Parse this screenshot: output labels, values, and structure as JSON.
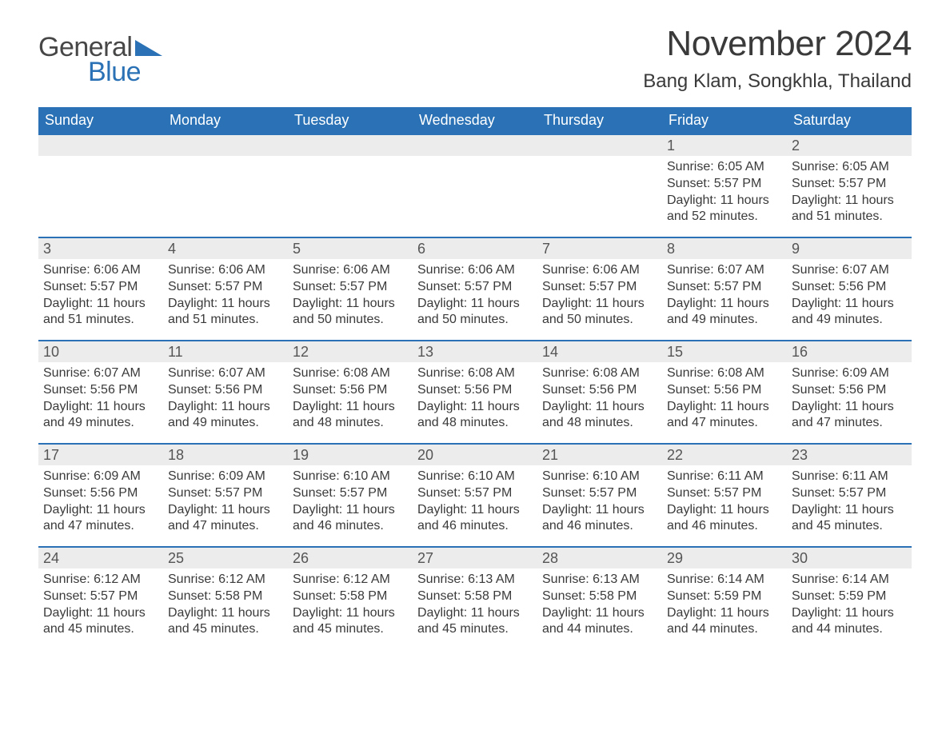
{
  "logo": {
    "word1": "General",
    "word2": "Blue",
    "brand_color": "#2a72b5",
    "text_color": "#474747"
  },
  "title": "November 2024",
  "location": "Bang Klam, Songkhla, Thailand",
  "colors": {
    "header_bg": "#2a72b5",
    "header_text": "#ffffff",
    "daynum_bg": "#ececec",
    "daynum_border": "#2a72b5",
    "body_text": "#3a3a3a",
    "page_bg": "#ffffff"
  },
  "fonts": {
    "title_size": 44,
    "location_size": 24,
    "dow_size": 18,
    "daynum_size": 18,
    "cell_size": 16
  },
  "day_of_week_labels": [
    "Sunday",
    "Monday",
    "Tuesday",
    "Wednesday",
    "Thursday",
    "Friday",
    "Saturday"
  ],
  "text_labels": {
    "sunrise_prefix": "Sunrise: ",
    "sunset_prefix": "Sunset: ",
    "daylight_prefix": "Daylight: "
  },
  "weeks": [
    [
      null,
      null,
      null,
      null,
      null,
      {
        "day": "1",
        "sunrise": "6:05 AM",
        "sunset": "5:57 PM",
        "daylight": "11 hours and 52 minutes."
      },
      {
        "day": "2",
        "sunrise": "6:05 AM",
        "sunset": "5:57 PM",
        "daylight": "11 hours and 51 minutes."
      }
    ],
    [
      {
        "day": "3",
        "sunrise": "6:06 AM",
        "sunset": "5:57 PM",
        "daylight": "11 hours and 51 minutes."
      },
      {
        "day": "4",
        "sunrise": "6:06 AM",
        "sunset": "5:57 PM",
        "daylight": "11 hours and 51 minutes."
      },
      {
        "day": "5",
        "sunrise": "6:06 AM",
        "sunset": "5:57 PM",
        "daylight": "11 hours and 50 minutes."
      },
      {
        "day": "6",
        "sunrise": "6:06 AM",
        "sunset": "5:57 PM",
        "daylight": "11 hours and 50 minutes."
      },
      {
        "day": "7",
        "sunrise": "6:06 AM",
        "sunset": "5:57 PM",
        "daylight": "11 hours and 50 minutes."
      },
      {
        "day": "8",
        "sunrise": "6:07 AM",
        "sunset": "5:57 PM",
        "daylight": "11 hours and 49 minutes."
      },
      {
        "day": "9",
        "sunrise": "6:07 AM",
        "sunset": "5:56 PM",
        "daylight": "11 hours and 49 minutes."
      }
    ],
    [
      {
        "day": "10",
        "sunrise": "6:07 AM",
        "sunset": "5:56 PM",
        "daylight": "11 hours and 49 minutes."
      },
      {
        "day": "11",
        "sunrise": "6:07 AM",
        "sunset": "5:56 PM",
        "daylight": "11 hours and 49 minutes."
      },
      {
        "day": "12",
        "sunrise": "6:08 AM",
        "sunset": "5:56 PM",
        "daylight": "11 hours and 48 minutes."
      },
      {
        "day": "13",
        "sunrise": "6:08 AM",
        "sunset": "5:56 PM",
        "daylight": "11 hours and 48 minutes."
      },
      {
        "day": "14",
        "sunrise": "6:08 AM",
        "sunset": "5:56 PM",
        "daylight": "11 hours and 48 minutes."
      },
      {
        "day": "15",
        "sunrise": "6:08 AM",
        "sunset": "5:56 PM",
        "daylight": "11 hours and 47 minutes."
      },
      {
        "day": "16",
        "sunrise": "6:09 AM",
        "sunset": "5:56 PM",
        "daylight": "11 hours and 47 minutes."
      }
    ],
    [
      {
        "day": "17",
        "sunrise": "6:09 AM",
        "sunset": "5:56 PM",
        "daylight": "11 hours and 47 minutes."
      },
      {
        "day": "18",
        "sunrise": "6:09 AM",
        "sunset": "5:57 PM",
        "daylight": "11 hours and 47 minutes."
      },
      {
        "day": "19",
        "sunrise": "6:10 AM",
        "sunset": "5:57 PM",
        "daylight": "11 hours and 46 minutes."
      },
      {
        "day": "20",
        "sunrise": "6:10 AM",
        "sunset": "5:57 PM",
        "daylight": "11 hours and 46 minutes."
      },
      {
        "day": "21",
        "sunrise": "6:10 AM",
        "sunset": "5:57 PM",
        "daylight": "11 hours and 46 minutes."
      },
      {
        "day": "22",
        "sunrise": "6:11 AM",
        "sunset": "5:57 PM",
        "daylight": "11 hours and 46 minutes."
      },
      {
        "day": "23",
        "sunrise": "6:11 AM",
        "sunset": "5:57 PM",
        "daylight": "11 hours and 45 minutes."
      }
    ],
    [
      {
        "day": "24",
        "sunrise": "6:12 AM",
        "sunset": "5:57 PM",
        "daylight": "11 hours and 45 minutes."
      },
      {
        "day": "25",
        "sunrise": "6:12 AM",
        "sunset": "5:58 PM",
        "daylight": "11 hours and 45 minutes."
      },
      {
        "day": "26",
        "sunrise": "6:12 AM",
        "sunset": "5:58 PM",
        "daylight": "11 hours and 45 minutes."
      },
      {
        "day": "27",
        "sunrise": "6:13 AM",
        "sunset": "5:58 PM",
        "daylight": "11 hours and 45 minutes."
      },
      {
        "day": "28",
        "sunrise": "6:13 AM",
        "sunset": "5:58 PM",
        "daylight": "11 hours and 44 minutes."
      },
      {
        "day": "29",
        "sunrise": "6:14 AM",
        "sunset": "5:59 PM",
        "daylight": "11 hours and 44 minutes."
      },
      {
        "day": "30",
        "sunrise": "6:14 AM",
        "sunset": "5:59 PM",
        "daylight": "11 hours and 44 minutes."
      }
    ]
  ]
}
